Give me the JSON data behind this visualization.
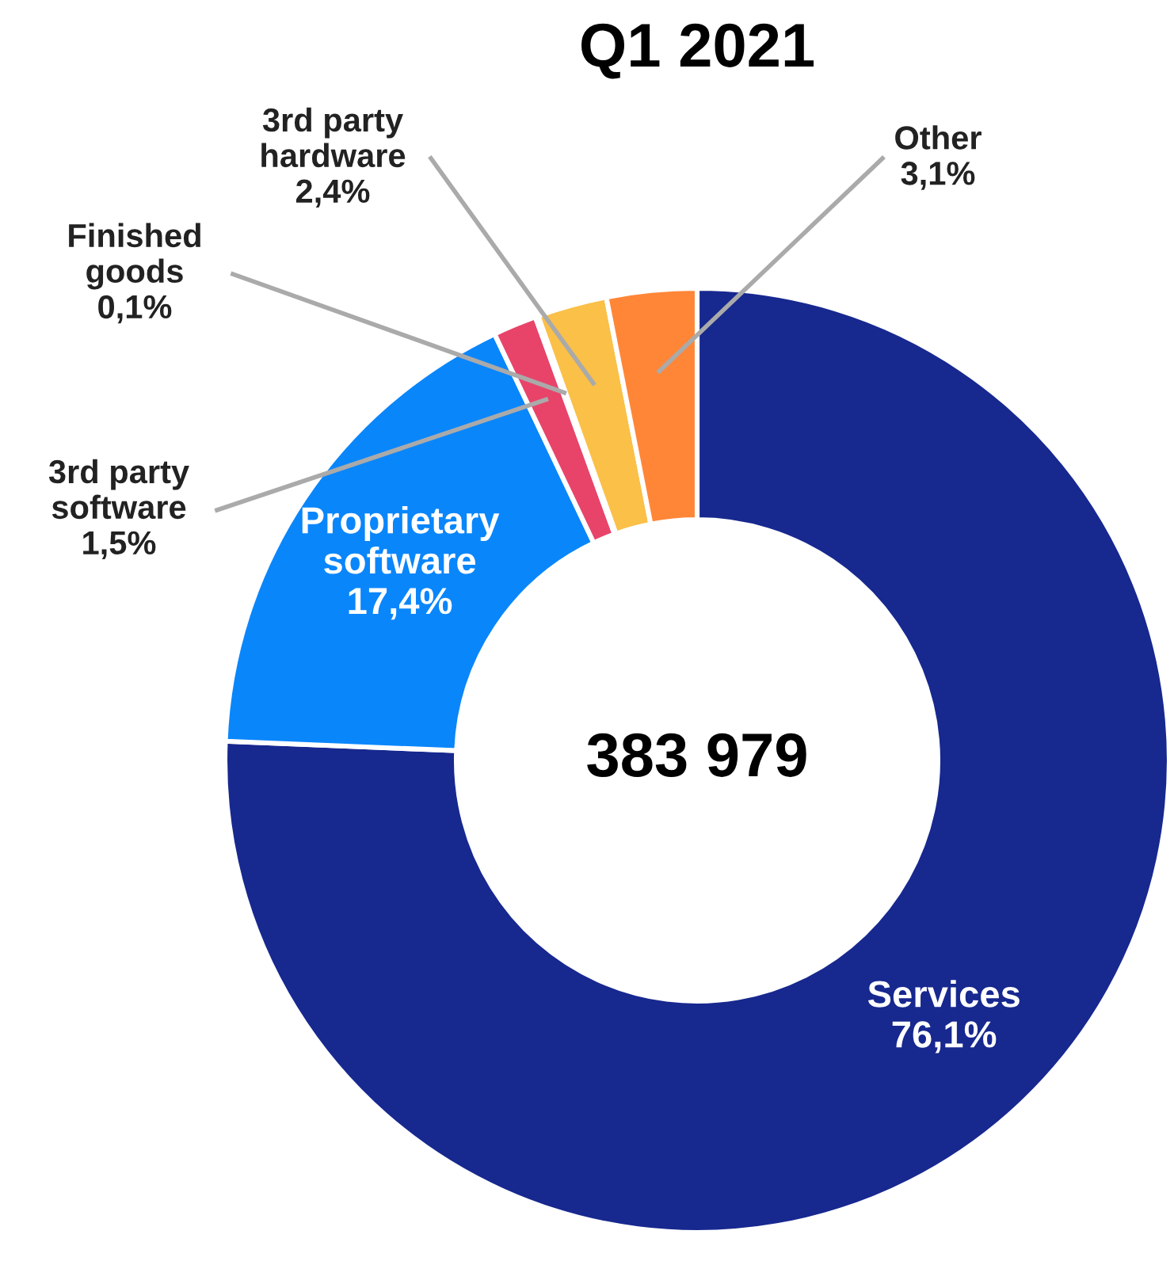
{
  "chart_data": {
    "type": "donut",
    "title": "Q1 2021",
    "categories": [
      "Services",
      "Proprietary software",
      "3rd party software",
      "Finished goods",
      "3rd party hardware",
      "Other"
    ],
    "values": [
      76.1,
      17.4,
      1.5,
      0.1,
      2.4,
      3.1
    ],
    "value_labels": [
      "76,1%",
      "17,4%",
      "1,5%",
      "0,1%",
      "2,4%",
      "3,1%"
    ],
    "colors": [
      "#17288f",
      "#0a86fb",
      "#e8446a",
      "#9b59b6",
      "#fac048",
      "#ff8637"
    ],
    "annotations": [
      "383 979"
    ],
    "legend": false
  }
}
